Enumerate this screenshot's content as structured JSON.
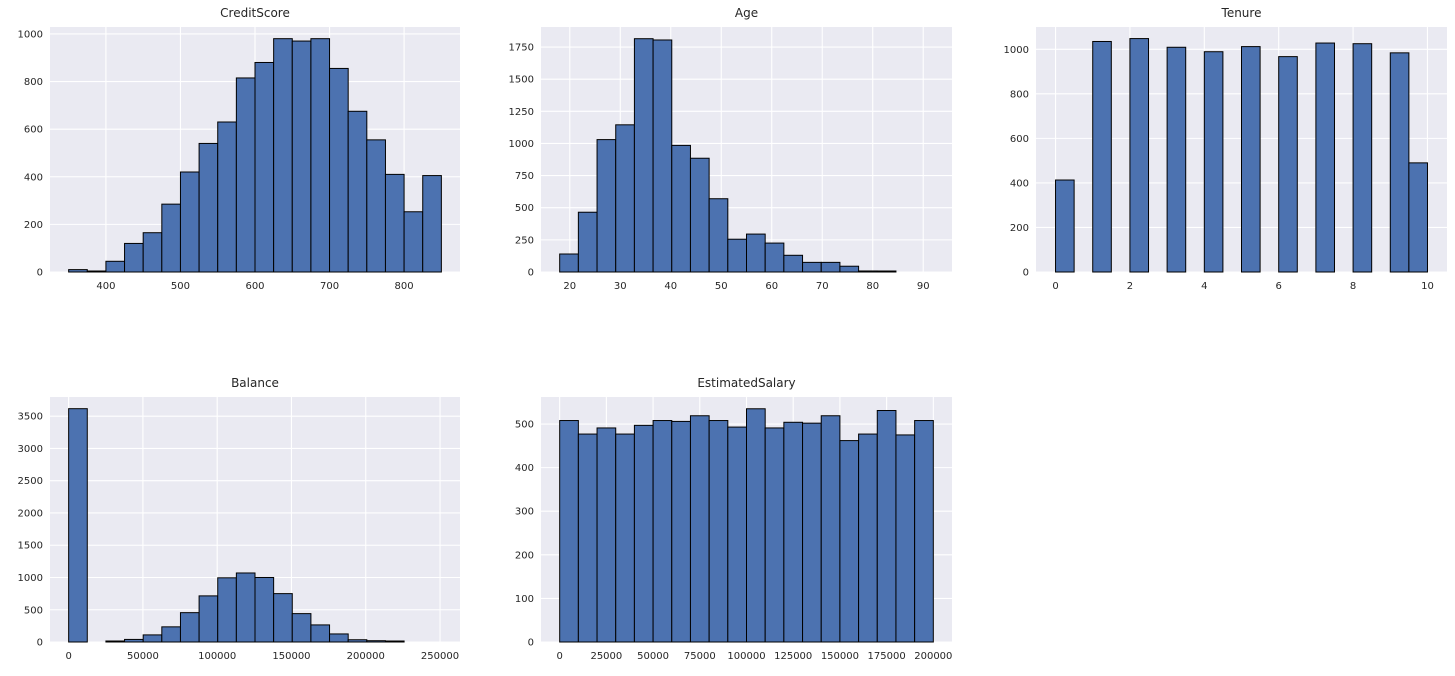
{
  "figure": {
    "background": "#ffffff",
    "axes_background": "#EAEAF2",
    "grid_color": "#ffffff",
    "bar_fill": "#4C72B0",
    "bar_edge": "#000000",
    "text_color": "#262626",
    "grid": true,
    "legend": null
  },
  "chart_data": [
    {
      "type": "bar",
      "title": "CreditScore",
      "xlabel": "",
      "ylabel": "",
      "bin_start": 350,
      "bin_width": 25,
      "values": [
        10,
        3,
        45,
        120,
        165,
        285,
        420,
        540,
        630,
        815,
        880,
        980,
        970,
        980,
        855,
        675,
        555,
        410,
        253,
        405
      ],
      "xlim": [
        325,
        875
      ],
      "ylim": [
        0,
        1029
      ],
      "xticks": [
        400,
        500,
        600,
        700,
        800
      ],
      "yticks": [
        0,
        200,
        400,
        600,
        800,
        1000
      ],
      "grid": true,
      "legend": null
    },
    {
      "type": "bar",
      "title": "Age",
      "xlabel": "",
      "ylabel": "",
      "bin_start": 18,
      "bin_width": 3.7,
      "values": [
        140,
        465,
        1030,
        1145,
        1815,
        1805,
        985,
        885,
        570,
        255,
        295,
        225,
        130,
        75,
        75,
        45,
        8,
        5,
        0,
        0
      ],
      "xlim": [
        14.3,
        95.7
      ],
      "ylim": [
        0,
        1906
      ],
      "xticks": [
        20,
        30,
        40,
        50,
        60,
        70,
        80,
        90
      ],
      "yticks": [
        0,
        250,
        500,
        750,
        1000,
        1250,
        1500,
        1750
      ],
      "grid": true,
      "legend": null
    },
    {
      "type": "bar",
      "title": "Tenure",
      "xlabel": "",
      "ylabel": "",
      "bin_start": 0,
      "bin_width": 0.5,
      "values": [
        413,
        0,
        1035,
        0,
        1048,
        0,
        1009,
        0,
        989,
        0,
        1012,
        0,
        967,
        0,
        1028,
        0,
        1025,
        0,
        984,
        490
      ],
      "xlim": [
        -0.525,
        10.525
      ],
      "ylim": [
        0,
        1100
      ],
      "xticks": [
        0,
        2,
        4,
        6,
        8,
        10
      ],
      "yticks": [
        0,
        200,
        400,
        600,
        800,
        1000
      ],
      "grid": true,
      "legend": null
    },
    {
      "type": "bar",
      "title": "Balance",
      "xlabel": "",
      "ylabel": "",
      "bin_start": 0,
      "bin_width": 12545,
      "values": [
        3617,
        0,
        5,
        40,
        110,
        235,
        455,
        715,
        995,
        1070,
        1000,
        750,
        440,
        265,
        125,
        35,
        20,
        5,
        0,
        0
      ],
      "xlim": [
        -12545,
        263443
      ],
      "ylim": [
        0,
        3798
      ],
      "xticks": [
        0,
        50000,
        100000,
        150000,
        200000,
        250000
      ],
      "yticks": [
        0,
        500,
        1000,
        1500,
        2000,
        2500,
        3000,
        3500
      ],
      "grid": true,
      "legend": null
    },
    {
      "type": "bar",
      "title": "EstimatedSalary",
      "xlabel": "",
      "ylabel": "",
      "bin_start": 12,
      "bin_width": 9999,
      "values": [
        508,
        477,
        491,
        477,
        497,
        508,
        506,
        519,
        508,
        493,
        535,
        491,
        504,
        502,
        519,
        462,
        477,
        531,
        475,
        508
      ],
      "xlim": [
        -9988,
        209991
      ],
      "ylim": [
        0,
        562
      ],
      "xticks": [
        0,
        25000,
        50000,
        75000,
        100000,
        125000,
        150000,
        175000,
        200000
      ],
      "yticks": [
        0,
        100,
        200,
        300,
        400,
        500
      ],
      "grid": true,
      "legend": null
    }
  ]
}
